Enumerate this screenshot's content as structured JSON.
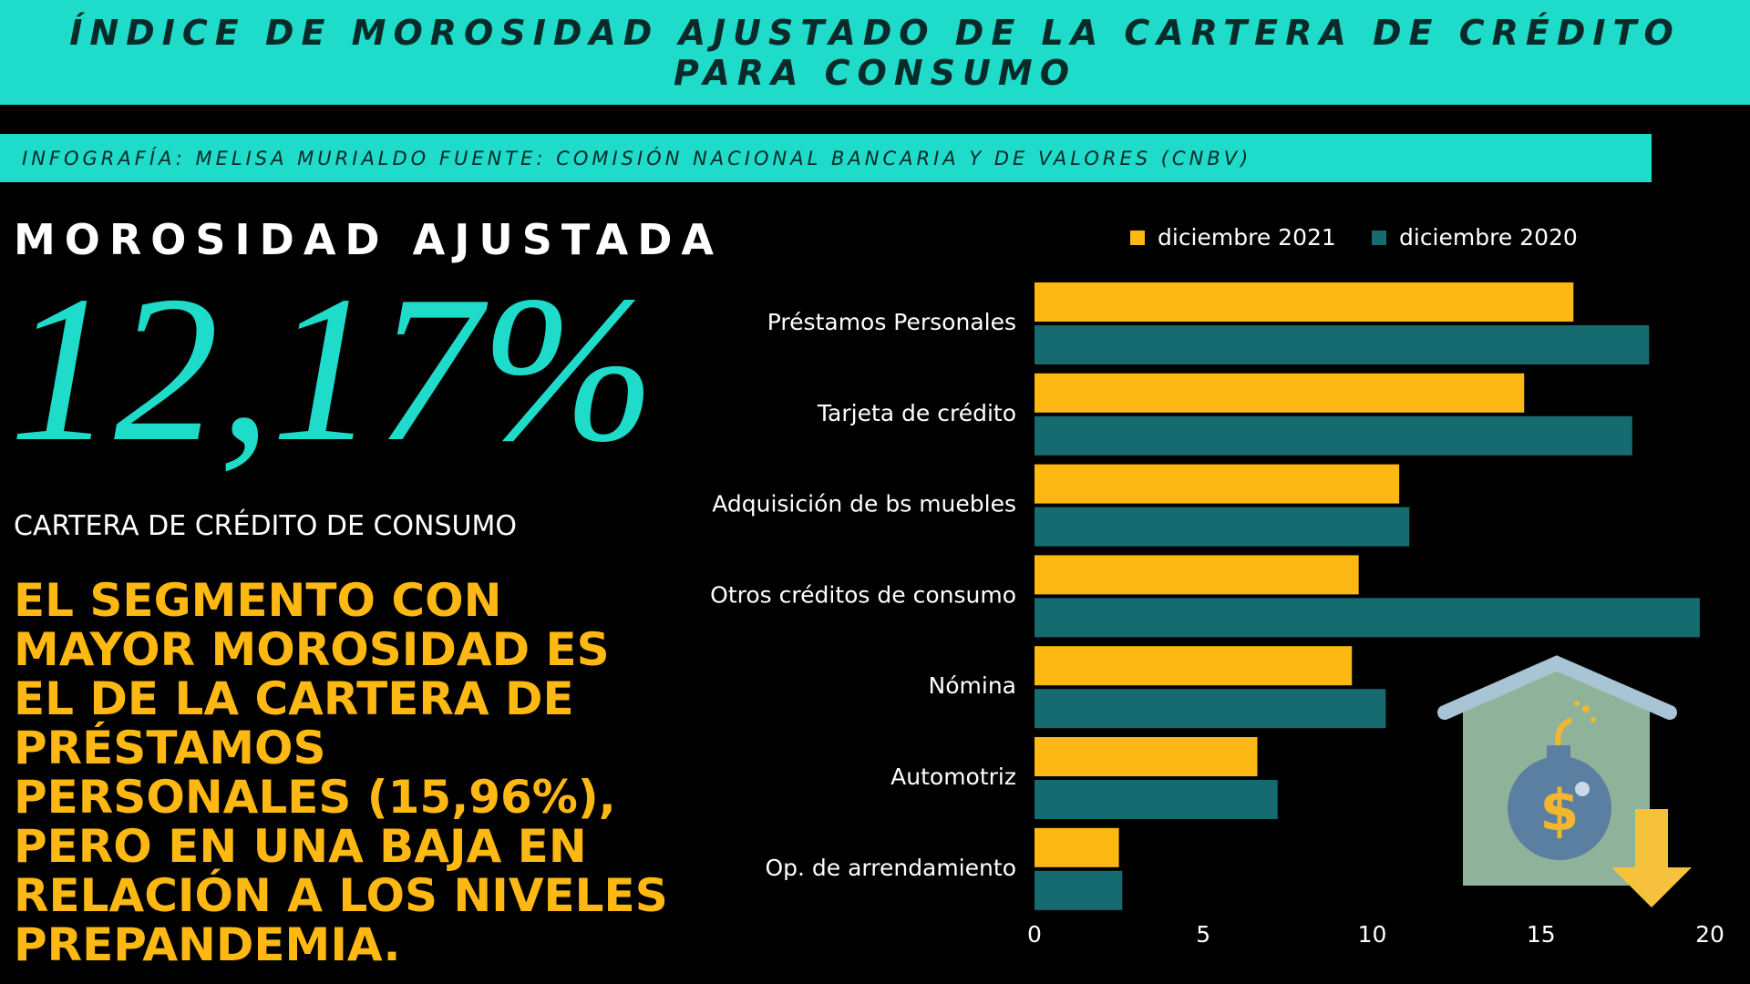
{
  "header": {
    "title": "ÍNDICE DE MOROSIDAD AJUSTADO DE LA CARTERA DE CRÉDITO PARA CONSUMO",
    "credit": "INFOGRAFÍA: MELISA MURIALDO FUENTE: COMISIÓN NACIONAL BANCARIA Y DE VALORES (CNBV)"
  },
  "panel": {
    "heading": "MOROSIDAD AJUSTADA",
    "figure": "12,17%",
    "caption": "CARTERA DE CRÉDITO DE CONSUMO",
    "highlight": [
      "EL SEGMENTO CON",
      "MAYOR MOROSIDAD ES",
      "EL DE LA CARTERA DE",
      "PRÉSTAMOS",
      "PERSONALES (15,96%),",
      "PERO EN UNA BAJA EN",
      "RELACIÓN A LOS NIVELES",
      "PREPANDEMIA."
    ]
  },
  "chart_data": {
    "type": "barh",
    "categories": [
      "Préstamos Personales",
      "Tarjeta de crédito",
      "Adquisición de bs muebles",
      "Otros créditos de consumo",
      "Nómina",
      "Automotriz",
      "Op. de arrendamiento"
    ],
    "series": [
      {
        "name": "diciembre 2021",
        "color": "#fdb813",
        "values": [
          15.96,
          14.5,
          10.8,
          9.6,
          9.4,
          6.6,
          2.5
        ]
      },
      {
        "name": "diciembre 2020",
        "color": "#156b70",
        "values": [
          18.2,
          17.7,
          11.1,
          19.7,
          10.4,
          7.2,
          2.6
        ]
      }
    ],
    "xlim": [
      0,
      20
    ],
    "xticks": [
      0,
      5,
      10,
      15,
      20
    ],
    "grid": false,
    "legend": "top"
  }
}
